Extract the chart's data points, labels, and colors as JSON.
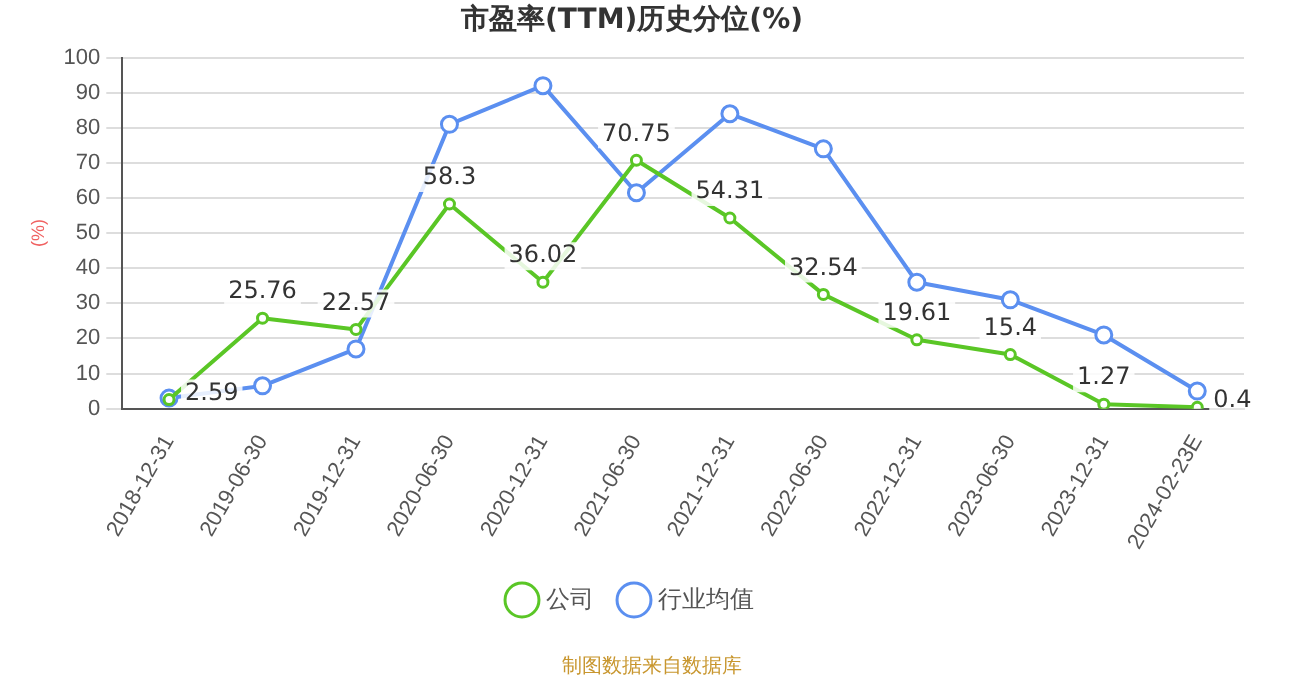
{
  "chart_data": {
    "type": "line",
    "title": "市盈率(TTM)历史分位(%)",
    "ylabel": "(%)",
    "categories": [
      "2018-12-31",
      "2019-06-30",
      "2019-12-31",
      "2020-06-30",
      "2020-12-31",
      "2021-06-30",
      "2021-12-31",
      "2022-06-30",
      "2022-12-31",
      "2023-06-30",
      "2023-12-31",
      "2024-02-23E"
    ],
    "series": [
      {
        "name": "公司",
        "color": "#5ac626",
        "values": [
          2.59,
          25.76,
          22.57,
          58.3,
          36.02,
          70.75,
          54.31,
          32.54,
          19.61,
          15.4,
          1.27,
          0.4
        ],
        "value_labels": [
          "2.59",
          "25.76",
          "22.57",
          "58.3",
          "36.02",
          "70.75",
          "54.31",
          "32.54",
          "19.61",
          "15.4",
          "1.27",
          "0.4"
        ]
      },
      {
        "name": "行业均值",
        "color": "#5b8ff0",
        "values": [
          3,
          6.5,
          17,
          81,
          92,
          61.5,
          84,
          74,
          36,
          31,
          21,
          5
        ]
      }
    ],
    "ylim": [
      0,
      100
    ],
    "yticks": [
      0,
      10,
      20,
      30,
      40,
      50,
      60,
      70,
      80,
      90,
      100
    ],
    "grid": "y",
    "legend": "bottom",
    "marker": "circle",
    "line_style": "solid",
    "annotations": [
      "制图数据来自数据库"
    ]
  }
}
